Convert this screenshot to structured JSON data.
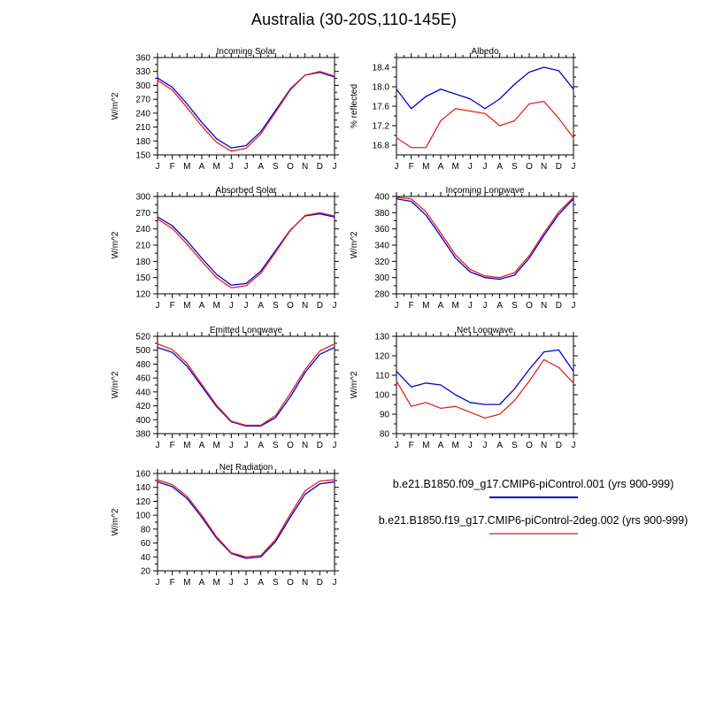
{
  "page_title": "Australia (30-20S,110-145E)",
  "months": [
    "J",
    "F",
    "M",
    "A",
    "M",
    "J",
    "J",
    "A",
    "S",
    "O",
    "N",
    "D",
    "J"
  ],
  "colors": {
    "series1": "#0000cd",
    "series2": "#e62020"
  },
  "chart_data": [
    {
      "type": "line",
      "title": "Incoming Solar",
      "ylabel": "W/m^2",
      "ylim": [
        150,
        360
      ],
      "ytick_start": 150,
      "ytick_step": 30,
      "series": [
        {
          "name": "b.e21.B1850.f09_g17.CMIP6-piControl.001",
          "color": "#0000cd",
          "values": [
            316,
            296,
            260,
            220,
            185,
            165,
            170,
            200,
            246,
            292,
            322,
            328,
            318
          ]
        },
        {
          "name": "b.e21.B1850.f19_g17.CMIP6-piControl-2deg.002",
          "color": "#e62020",
          "values": [
            311,
            290,
            252,
            212,
            177,
            158,
            164,
            195,
            242,
            290,
            322,
            330,
            320
          ]
        }
      ]
    },
    {
      "type": "line",
      "title": "Albedo",
      "ylabel": "% reflected",
      "ylim": [
        16.6,
        18.6
      ],
      "ytick_start": 16.8,
      "ytick_step": 0.4,
      "series": [
        {
          "name": "b.e21.B1850.f09_g17.CMIP6-piControl.001",
          "color": "#0000cd",
          "values": [
            17.95,
            17.55,
            17.8,
            17.95,
            17.85,
            17.75,
            17.55,
            17.75,
            18.05,
            18.3,
            18.4,
            18.33,
            17.95
          ]
        },
        {
          "name": "b.e21.B1850.f19_g17.CMIP6-piControl-2deg.002",
          "color": "#e62020",
          "values": [
            16.95,
            16.75,
            16.75,
            17.3,
            17.55,
            17.5,
            17.45,
            17.2,
            17.3,
            17.65,
            17.7,
            17.35,
            16.95
          ]
        }
      ]
    },
    {
      "type": "line",
      "title": "Absorbed Solar",
      "ylabel": "W/m^2",
      "ylim": [
        120,
        300
      ],
      "ytick_start": 120,
      "ytick_step": 30,
      "series": [
        {
          "name": "b.e21.B1850.f09_g17.CMIP6-piControl.001",
          "color": "#0000cd",
          "values": [
            262,
            246,
            218,
            186,
            156,
            136,
            139,
            162,
            200,
            238,
            264,
            268,
            262
          ]
        },
        {
          "name": "b.e21.B1850.f19_g17.CMIP6-piControl-2deg.002",
          "color": "#e62020",
          "values": [
            258,
            241,
            212,
            180,
            150,
            131,
            135,
            158,
            197,
            237,
            265,
            270,
            264
          ]
        }
      ]
    },
    {
      "type": "line",
      "title": "Incoming Longwave",
      "ylabel": "W/m^2",
      "ylim": [
        280,
        400
      ],
      "ytick_start": 280,
      "ytick_step": 20,
      "series": [
        {
          "name": "b.e21.B1850.f09_g17.CMIP6-piControl.001",
          "color": "#0000cd",
          "values": [
            397,
            394,
            377,
            351,
            324,
            307,
            300,
            298,
            303,
            324,
            352,
            378,
            397
          ]
        },
        {
          "name": "b.e21.B1850.f19_g17.CMIP6-piControl-2deg.002",
          "color": "#e62020",
          "values": [
            399,
            397,
            381,
            355,
            328,
            310,
            302,
            300,
            306,
            327,
            355,
            381,
            399
          ]
        }
      ]
    },
    {
      "type": "line",
      "title": "Emitted Longwave",
      "ylabel": "W/m^2",
      "ylim": [
        380,
        520
      ],
      "ytick_start": 380,
      "ytick_step": 20,
      "series": [
        {
          "name": "b.e21.B1850.f09_g17.CMIP6-piControl.001",
          "color": "#0000cd",
          "values": [
            504,
            497,
            477,
            448,
            419,
            397,
            391,
            391,
            403,
            433,
            468,
            494,
            504
          ]
        },
        {
          "name": "b.e21.B1850.f19_g17.CMIP6-piControl-2deg.002",
          "color": "#e62020",
          "values": [
            509,
            501,
            481,
            451,
            421,
            398,
            392,
            392,
            406,
            438,
            472,
            499,
            509
          ]
        }
      ]
    },
    {
      "type": "line",
      "title": "Net Longwave",
      "ylabel": "W/m^2",
      "ylim": [
        80,
        130
      ],
      "ytick_start": 80,
      "ytick_step": 10,
      "series": [
        {
          "name": "b.e21.B1850.f09_g17.CMIP6-piControl.001",
          "color": "#0000cd",
          "values": [
            112,
            104,
            106,
            105,
            100,
            96,
            95,
            95,
            103,
            113,
            122,
            123,
            112
          ]
        },
        {
          "name": "b.e21.B1850.f19_g17.CMIP6-piControl-2deg.002",
          "color": "#e62020",
          "values": [
            107,
            94,
            96,
            93,
            94,
            91,
            88,
            90,
            97,
            107,
            118,
            114,
            106
          ]
        }
      ]
    },
    {
      "type": "line",
      "title": "Net Radiation",
      "ylabel": "W/m^2",
      "ylim": [
        20,
        160
      ],
      "ytick_start": 20,
      "ytick_step": 20,
      "series": [
        {
          "name": "b.e21.B1850.f09_g17.CMIP6-piControl.001",
          "color": "#0000cd",
          "values": [
            148,
            141,
            124,
            97,
            67,
            45,
            38,
            40,
            62,
            97,
            130,
            145,
            148
          ]
        },
        {
          "name": "b.e21.B1850.f19_g17.CMIP6-piControl-2deg.002",
          "color": "#e62020",
          "values": [
            151,
            144,
            127,
            100,
            69,
            46,
            40,
            42,
            65,
            101,
            135,
            149,
            151
          ]
        }
      ]
    }
  ],
  "legend": {
    "entries": [
      {
        "label": "b.e21.B1850.f09_g17.CMIP6-piControl.001 (yrs 900-999)",
        "color": "#0000cd"
      },
      {
        "label": "b.e21.B1850.f19_g17.CMIP6-piControl-2deg.002 (yrs 900-999)",
        "color": "#e87070"
      }
    ]
  }
}
